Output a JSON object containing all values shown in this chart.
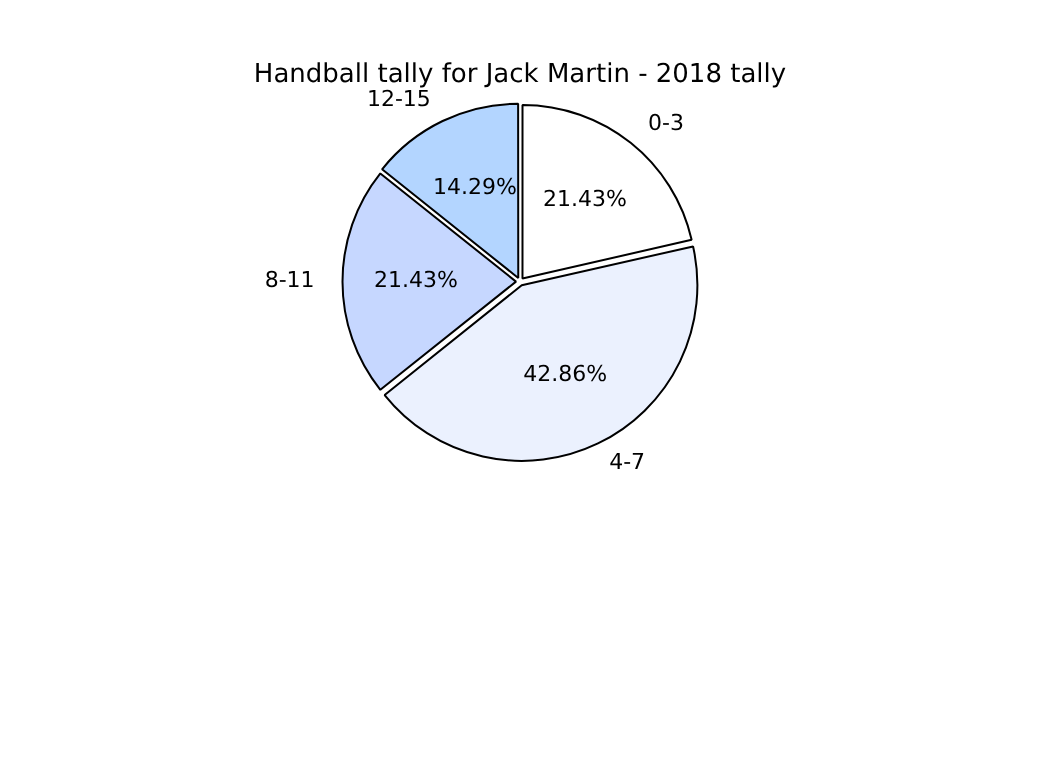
{
  "chart_data": {
    "type": "pie",
    "title": "Handball tally for Jack Martin - 2018 tally",
    "categories": [
      "0-3",
      "4-7",
      "8-11",
      "12-15"
    ],
    "values": [
      21.43,
      42.86,
      21.43,
      14.29
    ],
    "value_labels": [
      "21.43%",
      "42.86%",
      "21.43%",
      "14.29%"
    ],
    "colors": [
      "#ffffff",
      "#ebf1fe",
      "#c6d7ff",
      "#b3d5ff"
    ],
    "legend": false
  }
}
